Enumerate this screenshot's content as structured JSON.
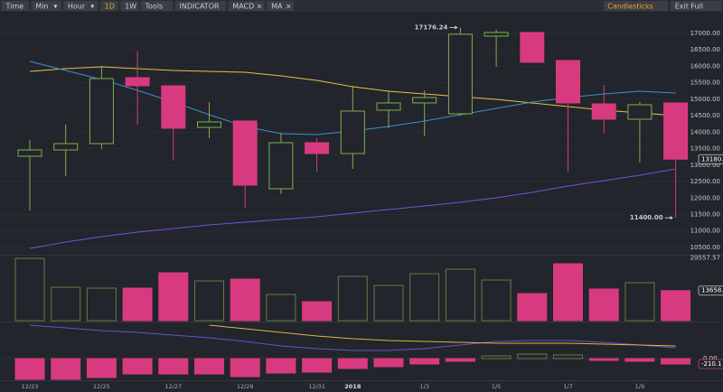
{
  "toolbar": {
    "left": [
      {
        "label": "Time"
      },
      {
        "label": "Min",
        "menu": "▾"
      },
      {
        "label": "Hour",
        "menu": "▾"
      },
      {
        "label": "1D",
        "active": true
      },
      {
        "label": "1W"
      },
      {
        "label": "Tools"
      },
      {
        "label": "INDICATOR"
      },
      {
        "label": "MACD",
        "close": "×"
      },
      {
        "label": "MA",
        "close": "×"
      }
    ],
    "right": [
      {
        "label": "Candlesticks",
        "active": true
      },
      {
        "label": "Exit Full"
      }
    ]
  },
  "chart_data": {
    "type": "candlestick",
    "categories": [
      "12/23",
      null,
      "12/25",
      null,
      "12/27",
      null,
      "12/29",
      null,
      "12/31",
      "2018",
      null,
      "1/3",
      null,
      "1/5",
      null,
      "1/7",
      null,
      "1/9",
      null
    ],
    "open": [
      13270,
      13460,
      13653,
      15656,
      15409,
      14147,
      14340,
      12282,
      13681,
      13352,
      14668,
      14888,
      14559,
      16918,
      17027,
      16177,
      14860,
      14394,
      14888
    ],
    "high": [
      13763,
      14230,
      16013,
      16451,
      15409,
      14915,
      14340,
      13983,
      13818,
      15409,
      15272,
      15272,
      17176.24,
      17110,
      17027,
      16177,
      15436,
      14915,
      14888
    ],
    "low": [
      11624,
      12666,
      13489,
      14230,
      13132,
      13818,
      11706,
      12117,
      12803,
      12886,
      14120,
      13873,
      14500,
      15985,
      16100,
      12803,
      13955,
      13077,
      11400
    ],
    "close": [
      13460,
      13653,
      15628,
      15409,
      14120,
      14312,
      12392,
      13681,
      13352,
      14641,
      14888,
      15052,
      16973,
      17027,
      16122,
      14888,
      14394,
      14833,
      13180
    ],
    "high_label": "17176.24",
    "low_label": "11400.00",
    "last_label": "13180.",
    "up_color": "#7fb04e",
    "down_color": "#d83a80",
    "ylim": [
      10280,
      17520
    ],
    "yticks": [
      {
        "value": 17000,
        "label": "17000.00"
      },
      {
        "value": 16500,
        "label": "16500.00"
      },
      {
        "value": 16000,
        "label": "16000.00"
      },
      {
        "value": 15500,
        "label": "15500.00"
      },
      {
        "value": 15000,
        "label": "15000.00"
      },
      {
        "value": 14500,
        "label": "14500.00"
      },
      {
        "value": 14000,
        "label": "14000.00"
      },
      {
        "value": 13500,
        "label": "13500.00"
      },
      {
        "value": 13000,
        "label": "13000.00"
      },
      {
        "value": 12500,
        "label": "12500.00"
      },
      {
        "value": 12000,
        "label": "12000.00"
      },
      {
        "value": 11500,
        "label": "11500.00"
      },
      {
        "value": 11000,
        "label": "11000.00"
      },
      {
        "value": 10500,
        "label": "10500.00"
      }
    ],
    "grid": true,
    "ma_series": [
      {
        "color": "#e3c24a",
        "values": [
          15848,
          15930,
          15985,
          15930,
          15875,
          15848,
          15820,
          15711,
          15574,
          15382,
          15245,
          15162,
          15080,
          14998,
          14888,
          14778,
          14668,
          14586,
          14504
        ]
      },
      {
        "color": "#3a8fd6",
        "values": [
          16150,
          15875,
          15601,
          15272,
          14915,
          14531,
          14175,
          13955,
          13928,
          14038,
          14175,
          14340,
          14531,
          14723,
          14915,
          15052,
          15162,
          15245,
          15190
        ]
      },
      {
        "color": "#7a4fd8",
        "values": [
          10472,
          10664,
          10829,
          10965,
          11075,
          11185,
          11267,
          11349,
          11432,
          11541,
          11651,
          11761,
          11870,
          12008,
          12172,
          12364,
          12529,
          12693,
          12886
        ]
      }
    ],
    "volume": {
      "values": [
        20500,
        14370,
        14178,
        14178,
        17436,
        15711,
        16094,
        12837,
        11304,
        16669,
        14753,
        17244,
        18202,
        15903,
        13029,
        19352,
        13987,
        15328,
        13658
      ],
      "ylim": [
        7280,
        21080
      ],
      "yticks": [
        20557.57
      ],
      "last_label": "13658."
    },
    "macd": {
      "histogram": [
        -805,
        -805,
        -735,
        -595,
        -595,
        -595,
        -700,
        -560,
        -525,
        -385,
        -315,
        -210,
        -105,
        105,
        175,
        140,
        -70,
        -105,
        -210.1
      ],
      "lines": [
        {
          "color": "#6a4fd0",
          "values": [
            1295,
            1190,
            1085,
            1015,
            910,
            805,
            665,
            490,
            385,
            315,
            315,
            385,
            525,
            665,
            700,
            700,
            630,
            525,
            420
          ]
        },
        {
          "color": "#d9b84a",
          "values": [
            null,
            null,
            null,
            null,
            null,
            1295,
            1155,
            1015,
            875,
            770,
            700,
            665,
            630,
            595,
            595,
            595,
            560,
            525,
            490
          ]
        }
      ],
      "ylim": [
        -875,
        1400
      ],
      "yticks": [
        {
          "value": 0,
          "label": "0.00"
        }
      ]
    }
  }
}
